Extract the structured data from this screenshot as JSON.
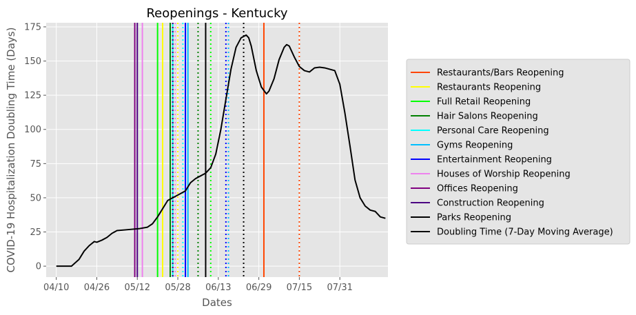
{
  "chart_data": {
    "type": "line",
    "title": "Reopenings - Kentucky",
    "xlabel": "Dates",
    "ylabel": "COVID-19 Hospitalization Doubling Time (Days)",
    "ylim": [
      -8,
      178
    ],
    "xlim": [
      "2020-04-06",
      "2020-08-19"
    ],
    "grid": true,
    "legend_position": "right",
    "x_ticks": [
      "04/10",
      "04/26",
      "05/12",
      "05/28",
      "06/13",
      "06/29",
      "07/15",
      "07/31"
    ],
    "x_tick_dates": [
      "2020-04-10",
      "2020-04-26",
      "2020-05-12",
      "2020-05-28",
      "2020-06-13",
      "2020-06-29",
      "2020-07-15",
      "2020-07-31"
    ],
    "y_ticks": [
      0,
      25,
      50,
      75,
      100,
      125,
      150,
      175
    ],
    "series": [
      {
        "name": "Doubling Time (7-Day Moving Average)",
        "color": "#000000",
        "points": [
          [
            "2020-04-10",
            0
          ],
          [
            "2020-04-13",
            0
          ],
          [
            "2020-04-16",
            0
          ],
          [
            "2020-04-19",
            5
          ],
          [
            "2020-04-21",
            11
          ],
          [
            "2020-04-23",
            15
          ],
          [
            "2020-04-25",
            18
          ],
          [
            "2020-04-26",
            17.5
          ],
          [
            "2020-04-28",
            19
          ],
          [
            "2020-04-30",
            21
          ],
          [
            "2020-05-02",
            24
          ],
          [
            "2020-05-04",
            26
          ],
          [
            "2020-05-07",
            26.5
          ],
          [
            "2020-05-10",
            27
          ],
          [
            "2020-05-13",
            27.5
          ],
          [
            "2020-05-16",
            28.5
          ],
          [
            "2020-05-18",
            31
          ],
          [
            "2020-05-20",
            36
          ],
          [
            "2020-05-22",
            42
          ],
          [
            "2020-05-24",
            48
          ],
          [
            "2020-05-26",
            50
          ],
          [
            "2020-05-28",
            52
          ],
          [
            "2020-05-31",
            55
          ],
          [
            "2020-06-02",
            61
          ],
          [
            "2020-06-04",
            64
          ],
          [
            "2020-06-06",
            66
          ],
          [
            "2020-06-08",
            68
          ],
          [
            "2020-06-10",
            72
          ],
          [
            "2020-06-12",
            82
          ],
          [
            "2020-06-14",
            100
          ],
          [
            "2020-06-16",
            122
          ],
          [
            "2020-06-18",
            144
          ],
          [
            "2020-06-20",
            160
          ],
          [
            "2020-06-22",
            167
          ],
          [
            "2020-06-24",
            169
          ],
          [
            "2020-06-25",
            167
          ],
          [
            "2020-06-26",
            161
          ],
          [
            "2020-06-28",
            143
          ],
          [
            "2020-06-30",
            131
          ],
          [
            "2020-07-02",
            126
          ],
          [
            "2020-07-03",
            128
          ],
          [
            "2020-07-05",
            137
          ],
          [
            "2020-07-07",
            151
          ],
          [
            "2020-07-09",
            160
          ],
          [
            "2020-07-10",
            162
          ],
          [
            "2020-07-11",
            161
          ],
          [
            "2020-07-13",
            153
          ],
          [
            "2020-07-15",
            146
          ],
          [
            "2020-07-17",
            143
          ],
          [
            "2020-07-19",
            142
          ],
          [
            "2020-07-21",
            145
          ],
          [
            "2020-07-23",
            145.5
          ],
          [
            "2020-07-25",
            145
          ],
          [
            "2020-07-27",
            144
          ],
          [
            "2020-07-29",
            143
          ],
          [
            "2020-07-31",
            133
          ],
          [
            "2020-08-02",
            112
          ],
          [
            "2020-08-04",
            88
          ],
          [
            "2020-08-06",
            63
          ],
          [
            "2020-08-08",
            50
          ],
          [
            "2020-08-10",
            44
          ],
          [
            "2020-08-12",
            41
          ],
          [
            "2020-08-14",
            40
          ],
          [
            "2020-08-16",
            36
          ],
          [
            "2020-08-18",
            35
          ]
        ]
      }
    ],
    "reopenings": [
      {
        "name": "Restaurants/Bars Reopening",
        "color": "#ff4500",
        "date": "2020-07-01",
        "end_date": "2020-07-15"
      },
      {
        "name": "Restaurants Reopening",
        "color": "#ffff00",
        "date": "2020-05-22",
        "end_date": "2020-05-28"
      },
      {
        "name": "Full Retail Reopening",
        "color": "#00ff00",
        "date": "2020-05-20",
        "end_date": "2020-06-10"
      },
      {
        "name": "Hair Salons Reopening",
        "color": "#008000",
        "date": "2020-05-25",
        "end_date": "2020-06-05"
      },
      {
        "name": "Personal Care Reopening",
        "color": "#00ffff",
        "date": "2020-05-26",
        "end_date": "2020-05-30"
      },
      {
        "name": "Gyms Reopening",
        "color": "#00bfff",
        "date": "2020-06-01",
        "end_date": "2020-06-17"
      },
      {
        "name": "Entertainment Reopening",
        "color": "#0000ff",
        "date": "2020-05-31",
        "end_date": "2020-06-16"
      },
      {
        "name": "Houses of Worship Reopening",
        "color": "#ee82ee",
        "date": "2020-05-14",
        "end_date": "2020-05-27"
      },
      {
        "name": "Offices Reopening",
        "color": "#800080",
        "date": "2020-05-11",
        "end_date": "2020-05-26"
      },
      {
        "name": "Construction Reopening",
        "color": "#4b0082",
        "date": "2020-05-12",
        "end_date": "2020-05-26"
      },
      {
        "name": "Parks Reopening",
        "color": "#000000",
        "date": "2020-06-08",
        "end_date": "2020-06-23"
      }
    ],
    "legend": [
      {
        "label": "Restaurants/Bars Reopening",
        "color": "#ff4500"
      },
      {
        "label": "Restaurants Reopening",
        "color": "#ffff00"
      },
      {
        "label": "Full Retail Reopening",
        "color": "#00ff00"
      },
      {
        "label": "Hair Salons Reopening",
        "color": "#008000"
      },
      {
        "label": "Personal Care Reopening",
        "color": "#00ffff"
      },
      {
        "label": "Gyms Reopening",
        "color": "#00bfff"
      },
      {
        "label": "Entertainment Reopening",
        "color": "#0000ff"
      },
      {
        "label": "Houses of Worship Reopening",
        "color": "#ee82ee"
      },
      {
        "label": "Offices Reopening",
        "color": "#800080"
      },
      {
        "label": "Construction Reopening",
        "color": "#4b0082"
      },
      {
        "label": "Parks Reopening",
        "color": "#000000"
      },
      {
        "label": "Doubling Time (7-Day Moving Average)",
        "color": "#000000"
      }
    ],
    "style": {
      "plot_background": "#e5e5e5",
      "grid_color": "#ffffff",
      "tick_color": "#555555"
    }
  }
}
